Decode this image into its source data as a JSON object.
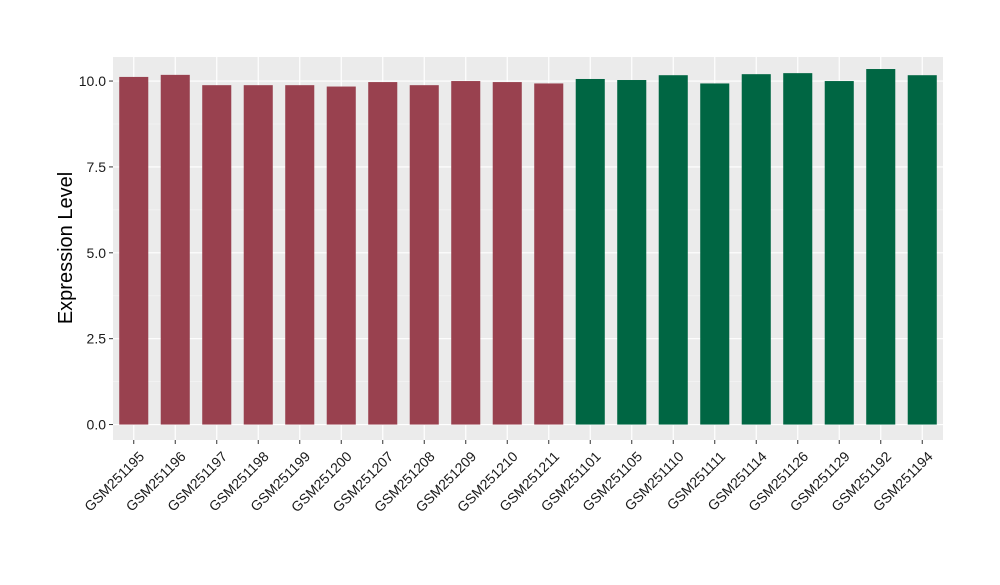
{
  "colors": {
    "panel_background": "#ebebeb",
    "grid_major": "#ffffff",
    "grid_minor": "#f4f4f4",
    "tick_mark": "#333333",
    "group_1": "#99414f",
    "group_2": "#006643"
  },
  "chart_data": {
    "type": "bar",
    "title": "",
    "xlabel": "",
    "ylabel": "Expression Level",
    "ylim": [
      -0.45,
      10.7
    ],
    "yticks": [
      0.0,
      2.5,
      5.0,
      7.5,
      10.0
    ],
    "ytick_labels": [
      "0.0",
      "2.5",
      "5.0",
      "7.5",
      "10.0"
    ],
    "grid": true,
    "legend": "none",
    "categories": [
      "GSM251195",
      "GSM251196",
      "GSM251197",
      "GSM251198",
      "GSM251199",
      "GSM251200",
      "GSM251207",
      "GSM251208",
      "GSM251209",
      "GSM251210",
      "GSM251211",
      "GSM251101",
      "GSM251105",
      "GSM251110",
      "GSM251111",
      "GSM251114",
      "GSM251126",
      "GSM251129",
      "GSM251192",
      "GSM251194"
    ],
    "values": [
      10.12,
      10.18,
      9.88,
      9.88,
      9.88,
      9.84,
      9.97,
      9.88,
      10.0,
      9.97,
      9.93,
      10.06,
      10.03,
      10.17,
      9.93,
      10.2,
      10.23,
      10.0,
      10.35,
      10.17
    ],
    "bar_groups": [
      "group_1",
      "group_1",
      "group_1",
      "group_1",
      "group_1",
      "group_1",
      "group_1",
      "group_1",
      "group_1",
      "group_1",
      "group_1",
      "group_2",
      "group_2",
      "group_2",
      "group_2",
      "group_2",
      "group_2",
      "group_2",
      "group_2",
      "group_2"
    ]
  }
}
